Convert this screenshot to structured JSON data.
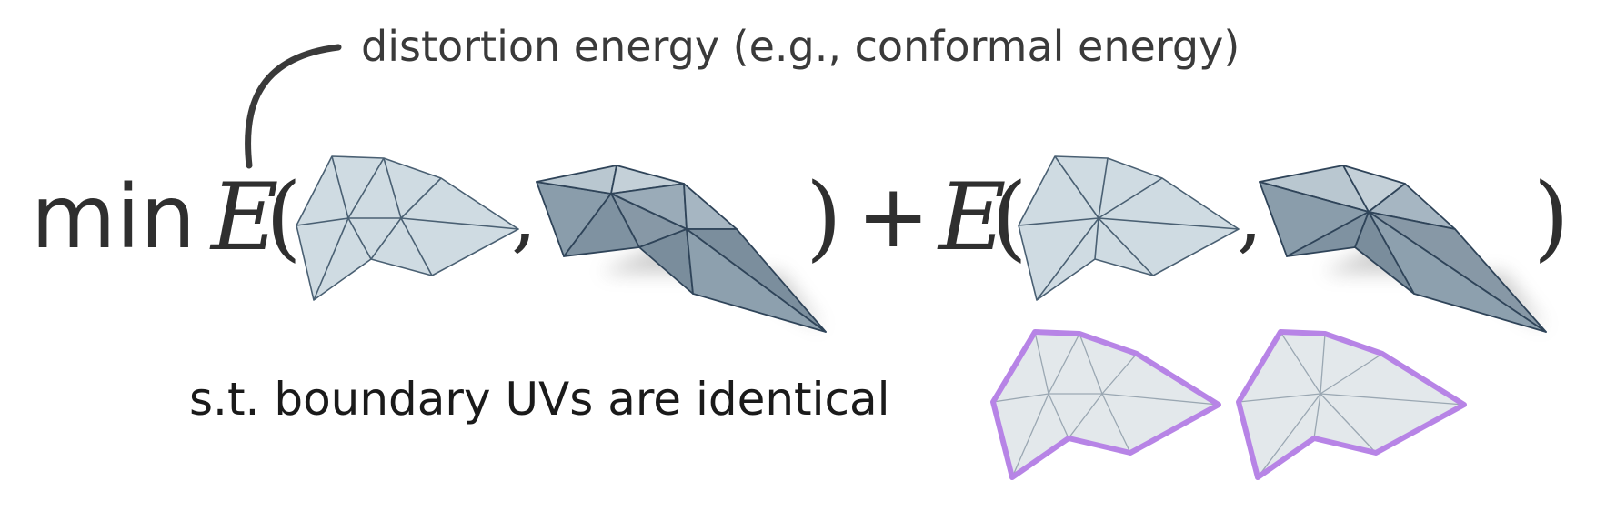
{
  "annotation": "distortion energy (e.g., conformal energy)",
  "equation": {
    "min": "min",
    "energy_symbol": "E",
    "open_paren": "(",
    "comma": ",",
    "close_paren": ")",
    "plus": "+"
  },
  "constraint": "s.t. boundary UVs are identical",
  "colors": {
    "flat_mesh_fill": "#cfdbe2",
    "mesh_edge": "#3b5268",
    "folded_mesh_fill": "#9eafbb",
    "uv_boundary": "#b784e6",
    "uv_fill": "#e3e8eb",
    "text": "#333333"
  }
}
